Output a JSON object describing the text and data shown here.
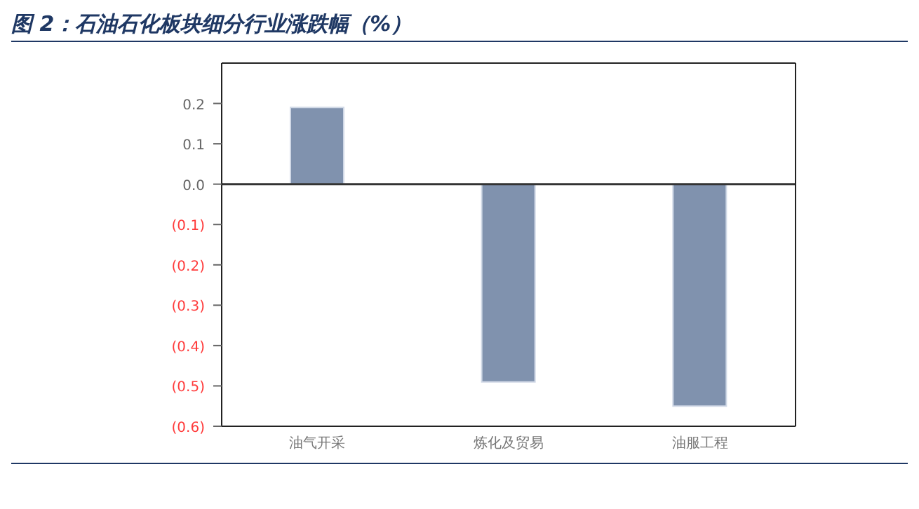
{
  "chart_data": {
    "type": "bar",
    "title": "图 2：石油石化板块细分行业涨跌幅（%）",
    "categories": [
      "油气开采",
      "炼化及贸易",
      "油服工程"
    ],
    "values": [
      0.19,
      -0.49,
      -0.55
    ],
    "color": "#8092ae",
    "ylim": [
      -0.6,
      0.3
    ],
    "yticks": [
      {
        "value": -0.6,
        "label": "(0.6)"
      },
      {
        "value": -0.5,
        "label": "(0.5)"
      },
      {
        "value": -0.4,
        "label": "(0.4)"
      },
      {
        "value": -0.3,
        "label": "(0.3)"
      },
      {
        "value": -0.2,
        "label": "(0.2)"
      },
      {
        "value": -0.1,
        "label": "(0.1)"
      },
      {
        "value": 0,
        "label": "0.0"
      },
      0.1,
      0.2
    ]
  }
}
